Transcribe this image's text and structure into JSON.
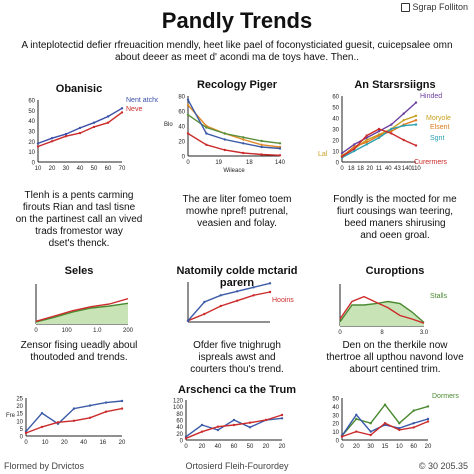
{
  "header": {
    "brand": "Sgrap Folliton",
    "title": "Pandly Trends",
    "intro": "A inteplotectid defier rfreuacition mendly, heet like pael of foconysticiated guesit, cuicepsalee omn about deeer as meet d' acondi ma de toys have. Then.."
  },
  "panels": [
    {
      "title": "Obanisic",
      "desc": [
        "Tlenh is a pents carming",
        "firouts Rian and tasl tisne",
        "on the partinest call an vived",
        "trads fromestor way",
        "dset's thenck."
      ]
    },
    {
      "title": "Recology Piger",
      "desc": [
        "The are liter fomeo toem",
        "mowhe npref! putrenal,",
        "veasien and folay."
      ]
    },
    {
      "title": "An Starsrsiigns",
      "desc": [
        "Fondly is the mocted for me",
        "fiurt cousings wan teering,",
        "beed maners shirusing",
        "and oeen groal."
      ]
    },
    {
      "title": "Seles",
      "desc": [
        "Zensor fising ueadly aboul",
        "thoutoded and trends."
      ]
    },
    {
      "title": "Natomily colde mctarid parern",
      "desc": [
        "Ofder five tnighrugh",
        "ispreals awst and",
        "courters thou's trend."
      ]
    },
    {
      "title": "Curoptions",
      "desc": [
        "Den on the therkile now",
        "thertroe all upthou navond love",
        "abourt centined trim."
      ]
    },
    {
      "title": "Arschenci ca the Trum",
      "desc": []
    },
    {
      "title": "",
      "desc": []
    },
    {
      "title": "",
      "desc": []
    }
  ],
  "footer": {
    "left": "Flormed by Drvictos",
    "center": "Ortosierd Fleih-Fourordey",
    "right": "© 30 205.35"
  },
  "chart_data": [
    {
      "type": "line",
      "ylim": [
        0,
        60
      ],
      "yticks": [
        "0",
        "10",
        "20",
        "30",
        "40",
        "50",
        "60"
      ],
      "xticks": [
        "10",
        "20",
        "30",
        "40",
        "50",
        "60",
        "70"
      ],
      "series": [
        {
          "name": "Nent atchor",
          "color": "#3b4ea8",
          "values": [
            18,
            23,
            27,
            33,
            38,
            44,
            52
          ]
        },
        {
          "name": "Neve",
          "color": "#cc2b2b",
          "values": [
            15,
            20,
            25,
            28,
            34,
            38,
            48
          ]
        }
      ]
    },
    {
      "type": "line",
      "ylim": [
        0,
        80
      ],
      "yticks": [
        "0",
        "20",
        "40",
        "60",
        "80"
      ],
      "ylabel": "Blo",
      "xlabel": "Wileace",
      "xticks": [
        "0",
        "19",
        "18",
        "140"
      ],
      "series": [
        {
          "color": "#e08a2a",
          "values": [
            68,
            40,
            30,
            22,
            15,
            12
          ]
        },
        {
          "color": "#5a8f3a",
          "values": [
            55,
            38,
            30,
            25,
            20,
            17
          ]
        },
        {
          "color": "#3b5aa8",
          "values": [
            75,
            30,
            22,
            17,
            12,
            10
          ]
        },
        {
          "color": "#cc2b2b",
          "values": [
            30,
            15,
            8,
            4,
            2,
            1
          ]
        }
      ]
    },
    {
      "type": "line",
      "ylim": [
        0,
        60
      ],
      "yticks": [
        "0",
        "10",
        "20",
        "30",
        "40",
        "50",
        "60"
      ],
      "xticks": [
        "0",
        "18",
        "18",
        "20",
        "11",
        "40",
        "43",
        "140",
        "110"
      ],
      "annotation": "Lal",
      "series": [
        {
          "name": "Hinded",
          "color": "#6b3fa0",
          "values": [
            8,
            16,
            22,
            28,
            34,
            44,
            54
          ]
        },
        {
          "name": "Moryole",
          "color": "#c8a020",
          "values": [
            6,
            12,
            20,
            25,
            30,
            38,
            42
          ]
        },
        {
          "name": "Elsent",
          "color": "#e07a20",
          "values": [
            5,
            14,
            18,
            24,
            28,
            34,
            38
          ]
        },
        {
          "name": "Sgnt",
          "color": "#2aa0b0",
          "values": [
            4,
            10,
            16,
            22,
            30,
            33,
            34
          ]
        },
        {
          "name": "Curermers",
          "color": "#cc2b2b",
          "values": [
            5,
            12,
            24,
            30,
            26,
            20,
            15
          ]
        }
      ]
    },
    {
      "type": "area",
      "ylim": [
        0,
        60
      ],
      "xticks": [
        "0",
        "100",
        "1.0",
        "200"
      ],
      "series": [
        {
          "color": "#4a8a30",
          "fill": "#c8e3b5",
          "values": [
            3,
            10,
            18,
            24,
            27,
            31
          ]
        },
        {
          "color": "#cc2b2b",
          "values": [
            4,
            12,
            20,
            26,
            30,
            38
          ]
        }
      ]
    },
    {
      "type": "line",
      "ylim": [
        0,
        60
      ],
      "series": [
        {
          "name": "Hooins",
          "color": "#cc2b2b",
          "values": [
            2,
            12,
            24,
            32,
            40,
            45
          ]
        },
        {
          "color": "#3b5aa8",
          "values": [
            2,
            30,
            40,
            46,
            52,
            58
          ]
        }
      ]
    },
    {
      "type": "area",
      "ylim": [
        0,
        60
      ],
      "xticks": [
        "0",
        "8",
        "3.0"
      ],
      "series": [
        {
          "name": "Stalls",
          "color": "#4a8a30",
          "fill": "#c8e3b5",
          "values": [
            6,
            30,
            30,
            32,
            35,
            32,
            20,
            5
          ]
        },
        {
          "color": "#cc2b2b",
          "values": [
            10,
            35,
            42,
            34,
            26,
            15,
            10,
            4
          ]
        }
      ]
    },
    {
      "type": "line",
      "ylim": [
        0,
        25
      ],
      "yticks": [
        "0",
        "5",
        "10",
        "15",
        "20",
        "25"
      ],
      "ylabel": "Fre",
      "xticks": [
        "0",
        "10",
        "20",
        "40",
        "16",
        "20"
      ],
      "series": [
        {
          "color": "#3b5aa8",
          "values": [
            3,
            15,
            8,
            18,
            20,
            22,
            23
          ]
        },
        {
          "color": "#cc2b2b",
          "values": [
            2,
            6,
            9,
            10,
            12,
            16,
            18
          ]
        }
      ]
    },
    {
      "type": "line",
      "ylim": [
        0,
        120
      ],
      "yticks": [
        "0",
        "20",
        "40",
        "60",
        "80",
        "100",
        "120"
      ],
      "xticks": [
        "0",
        "20",
        "40",
        "60",
        "50",
        "20",
        "20"
      ],
      "series": [
        {
          "color": "#3b5aa8",
          "values": [
            10,
            45,
            30,
            60,
            38,
            60,
            65
          ]
        },
        {
          "color": "#cc2b2b",
          "values": [
            5,
            25,
            40,
            45,
            52,
            60,
            75
          ]
        }
      ]
    },
    {
      "type": "line",
      "ylim": [
        0,
        50
      ],
      "yticks": [
        "0",
        "10",
        "20",
        "30",
        "40",
        "50"
      ],
      "xticks": [
        "0",
        "20",
        "30",
        "15",
        "10",
        "60",
        "20"
      ],
      "series": [
        {
          "name": "Dormers",
          "color": "#4a8a30",
          "values": [
            5,
            25,
            20,
            42,
            20,
            35,
            40
          ]
        },
        {
          "color": "#3b5aa8",
          "values": [
            5,
            30,
            10,
            18,
            14,
            20,
            25
          ]
        },
        {
          "color": "#cc2b2b",
          "values": [
            4,
            10,
            6,
            20,
            12,
            15,
            22
          ]
        }
      ]
    }
  ]
}
